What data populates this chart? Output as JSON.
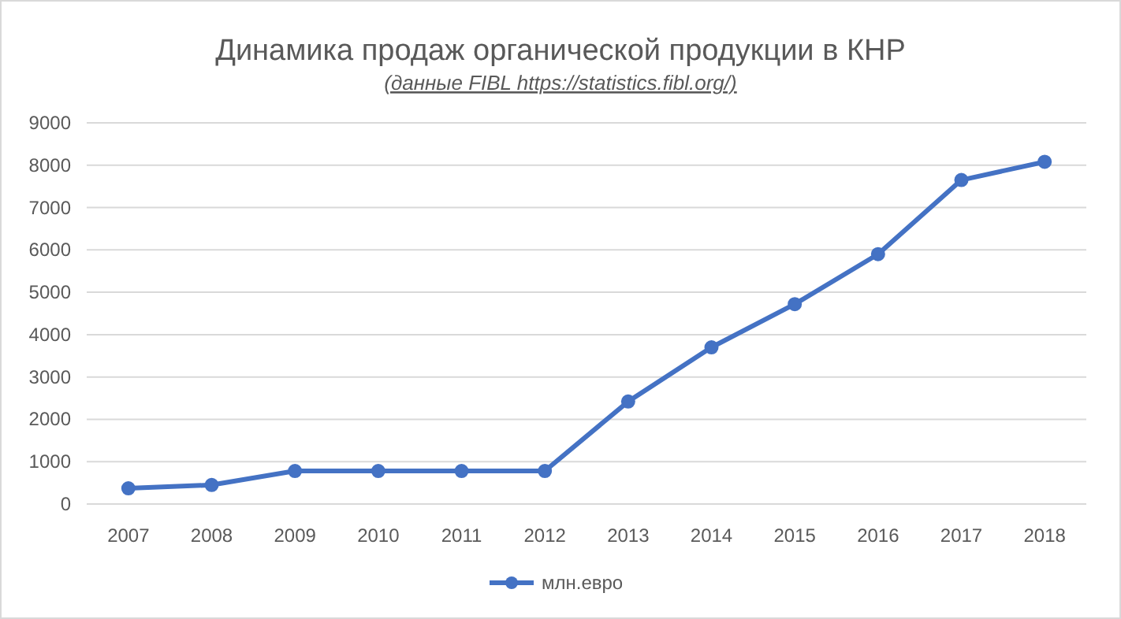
{
  "chart_data": {
    "type": "line",
    "title": "Динамика продаж органической продукции в КНР",
    "subtitle": "(данные FIBL https://statistics.fibl.org/)",
    "categories": [
      "2007",
      "2008",
      "2009",
      "2010",
      "2011",
      "2012",
      "2013",
      "2014",
      "2015",
      "2016",
      "2017",
      "2018"
    ],
    "series": [
      {
        "name": "млн.евро",
        "color": "#4472c4",
        "values": [
          370,
          450,
          780,
          780,
          780,
          780,
          2420,
          3700,
          4720,
          5900,
          7650,
          8080
        ]
      }
    ],
    "ylim": [
      0,
      9000
    ],
    "yticks": [
      0,
      1000,
      2000,
      3000,
      4000,
      5000,
      6000,
      7000,
      8000,
      9000
    ],
    "grid": "y",
    "legend": "bottom",
    "marker": "circle",
    "line_style": "solid"
  }
}
